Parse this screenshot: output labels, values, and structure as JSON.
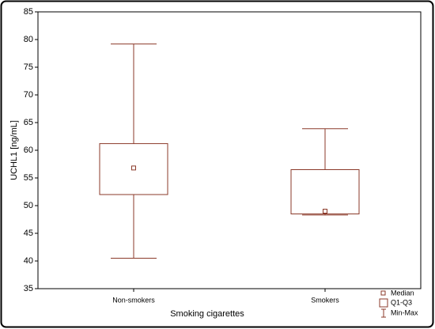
{
  "chart_data": {
    "type": "box",
    "x_label": "Smoking cigarettes",
    "y_label": "UCHL1 [ng/mL]",
    "categories": [
      "Non-smokers",
      "Smokers"
    ],
    "min": [
      40.5,
      48.3
    ],
    "q1": [
      52,
      48.5
    ],
    "median": [
      56.8,
      49
    ],
    "q3": [
      61.2,
      56.5
    ],
    "max": [
      79.2,
      63.9
    ],
    "color": "#8b3a2a",
    "legend": [
      "Median",
      "Q1-Q3",
      "Min-Max"
    ],
    "legend_position": "lower right",
    "ylim": [
      35,
      85
    ],
    "yticks": [
      35,
      40,
      45,
      50,
      55,
      60,
      65,
      70,
      75,
      80,
      85
    ],
    "grid": false
  }
}
